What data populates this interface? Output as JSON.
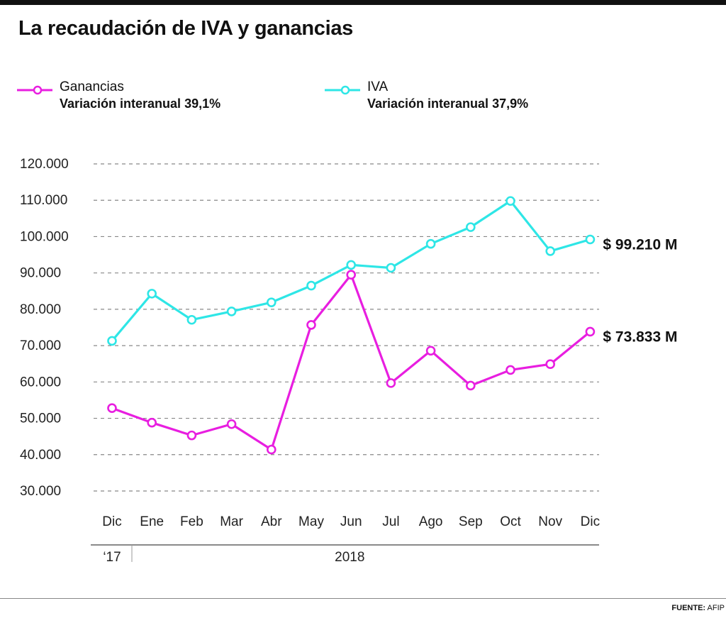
{
  "title": "La recaudación de IVA y ganancias",
  "legend": {
    "ganancias": {
      "name": "Ganancias",
      "variation": "Variación interanual 39,1%"
    },
    "iva": {
      "name": "IVA",
      "variation": "Variación interanual 37,9%"
    }
  },
  "source": {
    "label": "FUENTE:",
    "value": "AFIP"
  },
  "colors": {
    "ganancias": "#e81ee0",
    "iva": "#2ee6e6",
    "grid": "#888888"
  },
  "chart_data": {
    "type": "line",
    "title": "La recaudación de IVA y ganancias",
    "categories": [
      "Dic",
      "Ene",
      "Feb",
      "Mar",
      "Abr",
      "May",
      "Jun",
      "Jul",
      "Ago",
      "Sep",
      "Oct",
      "Nov",
      "Dic"
    ],
    "year_groups": [
      {
        "label": "‘17",
        "from": 0,
        "to": 0
      },
      {
        "label": "2018",
        "from": 1,
        "to": 12
      }
    ],
    "yticks": [
      "30.000",
      "40.000",
      "50.000",
      "60.000",
      "70.000",
      "80.000",
      "90.000",
      "100.000",
      "110.000",
      "120.000"
    ],
    "ylim": [
      30000,
      120000
    ],
    "grid": true,
    "legend_position": "top",
    "series": [
      {
        "name": "Ganancias",
        "color": "#e81ee0",
        "values": [
          52800,
          48800,
          45300,
          48400,
          41400,
          75700,
          89500,
          59700,
          68600,
          59000,
          63300,
          64900,
          73833
        ],
        "end_label": "$ 73.833 M"
      },
      {
        "name": "IVA",
        "color": "#2ee6e6",
        "values": [
          71300,
          84300,
          77100,
          79400,
          81900,
          86500,
          92200,
          91400,
          98000,
          102600,
          109800,
          96000,
          99210
        ],
        "end_label": "$ 99.210 M"
      }
    ]
  }
}
